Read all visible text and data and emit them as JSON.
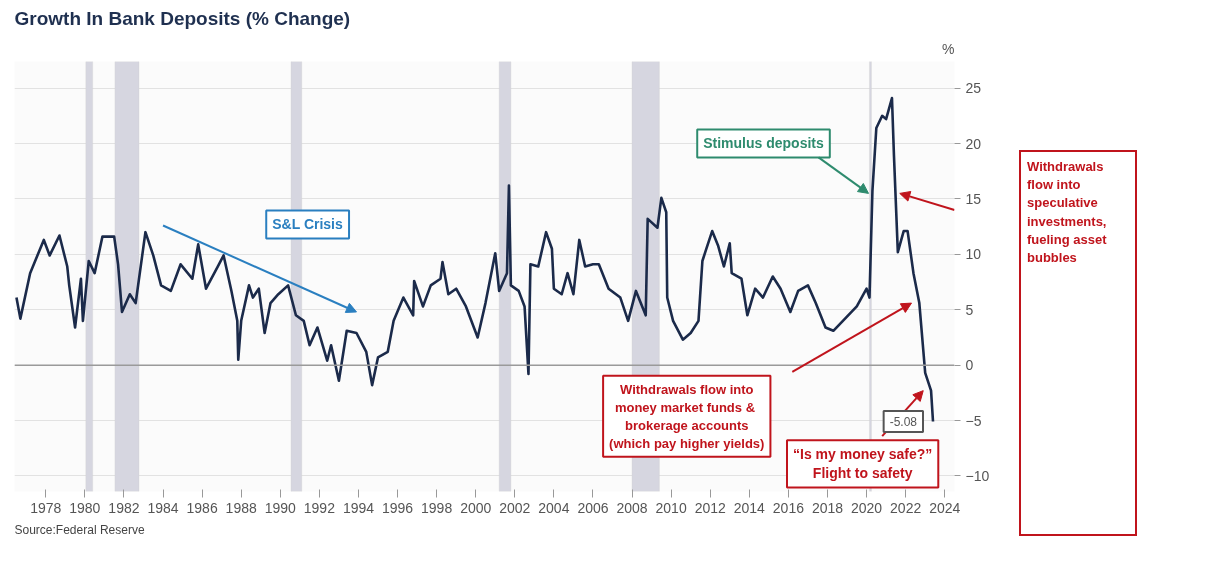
{
  "chart_data": {
    "type": "line",
    "title": "Growth In Bank Deposits (% Change)",
    "ylabel": "%",
    "series": [
      {
        "color": "#1b2a4a",
        "x": [
          1976.5,
          1976.7,
          1977.2,
          1977.9,
          1978.2,
          1978.7,
          1979.1,
          1979.2,
          1979.5,
          1979.8,
          1979.9,
          1980.2,
          1980.5,
          1980.9,
          1981.5,
          1981.7,
          1981.9,
          1982.3,
          1982.6,
          1983.1,
          1983.5,
          1983.9,
          1984.4,
          1984.9,
          1985.5,
          1985.8,
          1986.2,
          1986.8,
          1987.1,
          1987.5,
          1987.8,
          1987.85,
          1988.0,
          1988.4,
          1988.6,
          1988.9,
          1989.2,
          1989.5,
          1989.9,
          1990.4,
          1990.8,
          1991.2,
          1991.5,
          1991.9,
          1992.4,
          1992.6,
          1993.0,
          1993.4,
          1993.9,
          1994.4,
          1994.7,
          1995.0,
          1995.5,
          1995.8,
          1996.3,
          1996.8,
          1996.85,
          1997.3,
          1997.7,
          1998.2,
          1998.3,
          1998.6,
          1999.0,
          1999.5,
          2000.1,
          2000.5,
          2001.0,
          2001.2,
          2001.6,
          2001.7,
          2001.8,
          2002.2,
          2002.5,
          2002.7,
          2002.8,
          2003.2,
          2003.6,
          2003.9,
          2004.0,
          2004.4,
          2004.7,
          2005.0,
          2005.3,
          2005.6,
          2006.0,
          2006.3,
          2006.8,
          2007.4,
          2007.8,
          2008.2,
          2008.7,
          2008.8,
          2009.3,
          2009.5,
          2009.75,
          2009.8,
          2010.1,
          2010.6,
          2011.0,
          2011.4,
          2011.6,
          2011.8,
          2012.1,
          2012.4,
          2012.7,
          2013.0,
          2013.1,
          2013.6,
          2013.9,
          2014.3,
          2014.7,
          2015.2,
          2015.6,
          2016.1,
          2016.5,
          2017.0,
          2017.4,
          2017.9,
          2018.3,
          2018.9,
          2019.5,
          2020.0,
          2020.15,
          2020.3,
          2020.5,
          2020.8,
          2021.0,
          2021.3,
          2021.4,
          2021.6,
          2021.9,
          2022.1,
          2022.4,
          2022.7,
          2023.0,
          2023.3,
          2023.4
        ],
        "values": [
          6.1,
          4.2,
          8.3,
          11.3,
          9.9,
          11.7,
          8.9,
          7.2,
          3.4,
          7.8,
          4.0,
          9.4,
          8.3,
          11.6,
          11.6,
          9.1,
          4.8,
          6.4,
          5.6,
          12.0,
          9.9,
          7.2,
          6.7,
          9.1,
          7.8,
          10.9,
          6.9,
          8.9,
          9.9,
          6.7,
          4.0,
          0.5,
          4.0,
          7.2,
          6.1,
          6.9,
          2.9,
          5.6,
          6.4,
          7.2,
          4.5,
          4.0,
          1.8,
          3.4,
          0.4,
          1.8,
          -1.4,
          3.1,
          2.9,
          1.2,
          -1.8,
          0.7,
          1.2,
          4.0,
          6.1,
          4.5,
          7.6,
          5.3,
          7.2,
          7.8,
          9.3,
          6.4,
          6.9,
          5.3,
          2.5,
          5.6,
          10.1,
          6.7,
          8.3,
          16.2,
          7.2,
          6.7,
          5.3,
          -0.8,
          9.1,
          8.9,
          12.0,
          10.5,
          6.9,
          6.4,
          8.3,
          6.4,
          11.3,
          8.9,
          9.1,
          9.1,
          6.9,
          6.1,
          4.0,
          6.7,
          4.5,
          13.2,
          12.4,
          15.1,
          13.8,
          6.1,
          4.0,
          2.3,
          2.9,
          4.0,
          9.4,
          10.5,
          12.1,
          10.8,
          8.9,
          11.0,
          8.3,
          7.8,
          4.5,
          6.9,
          6.1,
          8.0,
          6.9,
          4.8,
          6.7,
          7.2,
          5.6,
          3.4,
          3.1,
          4.2,
          5.3,
          6.9,
          6.1,
          15.7,
          21.4,
          22.5,
          22.2,
          24.1,
          19.0,
          10.2,
          12.1,
          12.1,
          8.3,
          5.6,
          -0.7,
          -2.3,
          -5.08
        ]
      }
    ],
    "xlim": [
      1976.4,
      2024.5
    ],
    "ylim": [
      -11.4,
      27.4
    ],
    "xticks": [
      1978,
      1980,
      1982,
      1984,
      1986,
      1988,
      1990,
      1992,
      1994,
      1996,
      1998,
      2000,
      2002,
      2004,
      2006,
      2008,
      2010,
      2012,
      2014,
      2016,
      2018,
      2020,
      2022,
      2024
    ],
    "yticks": [
      -10,
      -5,
      0,
      5,
      10,
      15,
      20,
      25
    ],
    "grid": "y",
    "marker": "none",
    "line_style": "solid",
    "bands": [
      {
        "axis": "x",
        "from": 1980.05,
        "to": 1980.4,
        "color": "#d6d6e0"
      },
      {
        "axis": "x",
        "from": 1981.54,
        "to": 1982.77,
        "color": "#d6d6e0"
      },
      {
        "axis": "x",
        "from": 1990.55,
        "to": 1991.1,
        "color": "#d6d6e0"
      },
      {
        "axis": "x",
        "from": 2001.2,
        "to": 2001.8,
        "color": "#d6d6e0"
      },
      {
        "axis": "x",
        "from": 2008.0,
        "to": 2009.4,
        "color": "#d6d6e0"
      },
      {
        "axis": "x",
        "from": 2020.15,
        "to": 2020.25,
        "color": "#d6d6e0"
      }
    ],
    "ref_lines": [
      {
        "axis": "y",
        "value": 0,
        "color": "#9a9a9a"
      }
    ],
    "annotations": [
      "S&L Crisis",
      {
        "text": "Stimulus deposits",
        "x": 2020.1,
        "y": 15.5
      },
      "Withdrawals\nflow into\nspeculative\ninvestments,\nfueling asset\nbubbles",
      "Withdrawals flow into\nmoney market funds  &\nbrokerage accounts\n(which pay higher yields)",
      "“Is my money safe?”\nFlight to safety",
      {
        "text": "-5.08",
        "x": 2023.4,
        "y": -5.08
      },
      "Source:Federal Reserve"
    ]
  }
}
